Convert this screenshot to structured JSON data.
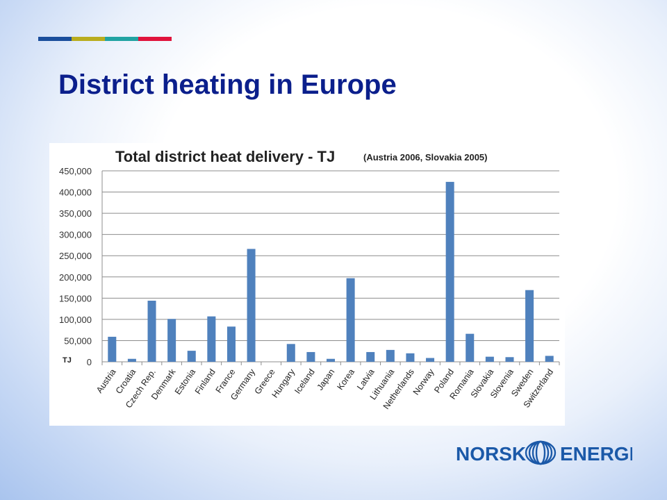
{
  "slide": {
    "title": "District heating in Europe",
    "stripe_colors": [
      "#1a4e9c",
      "#b9ad1e",
      "#21a3a3",
      "#e0133c"
    ]
  },
  "logo": {
    "left_text": "NORSK",
    "right_text": "ENERGI",
    "color": "#1b59a8"
  },
  "chart_data": {
    "type": "bar",
    "title": "Total district heat delivery - TJ",
    "subtitle": "(Austria 2006, Slovakia 2005)",
    "ylabel": "TJ",
    "xlabel": "",
    "ylim": [
      0,
      450000
    ],
    "yticks": [
      0,
      50000,
      100000,
      150000,
      200000,
      250000,
      300000,
      350000,
      400000,
      450000
    ],
    "ytick_labels": [
      "0",
      "50,000",
      "100,000",
      "150,000",
      "200,000",
      "250,000",
      "300,000",
      "350,000",
      "400,000",
      "450,000"
    ],
    "grid": true,
    "legend": "none",
    "bar_color": "#4f81bd",
    "categories": [
      "Austria",
      "Croatia",
      "Czech Rep.",
      "Denmark",
      "Estonia",
      "Finland",
      "France",
      "Germany",
      "Greece",
      "Hungary",
      "Iceland",
      "Japan",
      "Korea",
      "Latvia",
      "Lithuania",
      "Netherlands",
      "Norway",
      "Poland",
      "Romania",
      "Slovakia",
      "Slovenia",
      "Sweden",
      "Switzerland"
    ],
    "values": [
      59000,
      7000,
      144000,
      101000,
      26000,
      107000,
      83000,
      266000,
      0,
      42000,
      23000,
      7000,
      197000,
      23000,
      28000,
      20000,
      9000,
      424000,
      66000,
      12000,
      11000,
      169000,
      14000
    ]
  }
}
